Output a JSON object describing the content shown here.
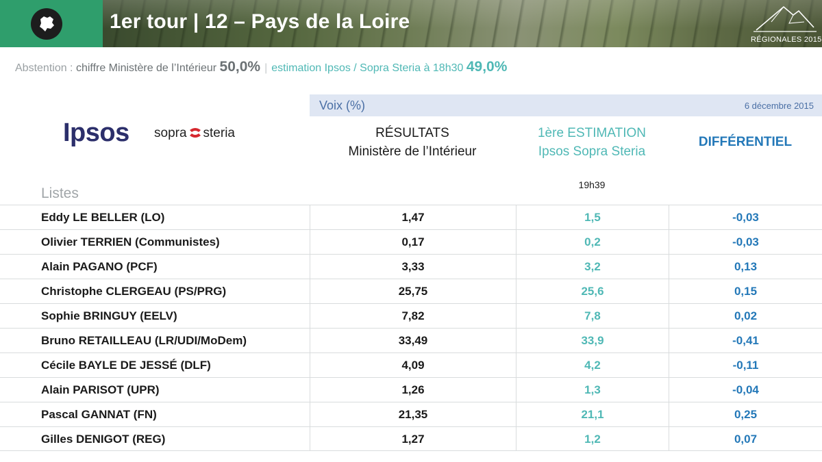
{
  "header": {
    "title": "1er tour | 12 – Pays de la Loire",
    "badge_icon": "region-map-icon",
    "brand_logo_text": "RÉGIONALES 2015",
    "banner_color": "#2f9e6c"
  },
  "abstention": {
    "label": "Abstention",
    "colon": " : ",
    "ministere_label": "chiffre Ministère de l’Intérieur",
    "ministere_value": "50,0%",
    "separator": "|",
    "estimation_label": "estimation Ipsos / Sopra Steria à 18h30",
    "estimation_value": "49,0%"
  },
  "logos": {
    "ipsos": "Ipsos",
    "sopra_left": "sopra",
    "sopra_right": "steria"
  },
  "voix_band": {
    "label": "Voix (%)",
    "date": "6 décembre 2015"
  },
  "columns": {
    "listes": "Listes",
    "resultats_line1": "RÉSULTATS",
    "resultats_line2": "Ministère de l’Intérieur",
    "estimation_line1": "1ère ESTIMATION",
    "estimation_line2": "Ipsos Sopra Steria",
    "estimation_time": "19h39",
    "differentiel": "DIFFÉRENTIEL"
  },
  "colors": {
    "estimation": "#4fb8b5",
    "differentiel": "#2378b8",
    "ipsos": "#2c2f6b",
    "band": "#dfe6f3"
  },
  "chart_data": {
    "type": "table",
    "columns": [
      "Listes",
      "RÉSULTATS Ministère de l’Intérieur",
      "1ère ESTIMATION Ipsos Sopra Steria",
      "DIFFÉRENTIEL"
    ],
    "rows": [
      {
        "name": "Eddy LE BELLER (LO)",
        "resultat": "1,47",
        "estimation": "1,5",
        "differentiel": "-0,03"
      },
      {
        "name": "Olivier TERRIEN (Communistes)",
        "resultat": "0,17",
        "estimation": "0,2",
        "differentiel": "-0,03"
      },
      {
        "name": "Alain PAGANO (PCF)",
        "resultat": "3,33",
        "estimation": "3,2",
        "differentiel": "0,13"
      },
      {
        "name": "Christophe CLERGEAU (PS/PRG)",
        "resultat": "25,75",
        "estimation": "25,6",
        "differentiel": "0,15"
      },
      {
        "name": "Sophie BRINGUY (EELV)",
        "resultat": "7,82",
        "estimation": "7,8",
        "differentiel": "0,02"
      },
      {
        "name": "Bruno RETAILLEAU (LR/UDI/MoDem)",
        "resultat": "33,49",
        "estimation": "33,9",
        "differentiel": "-0,41"
      },
      {
        "name": "Cécile BAYLE DE JESSÉ (DLF)",
        "resultat": "4,09",
        "estimation": "4,2",
        "differentiel": "-0,11"
      },
      {
        "name": "Alain PARISOT (UPR)",
        "resultat": "1,26",
        "estimation": "1,3",
        "differentiel": "-0,04"
      },
      {
        "name": "Pascal GANNAT (FN)",
        "resultat": "21,35",
        "estimation": "21,1",
        "differentiel": "0,25"
      },
      {
        "name": "Gilles DENIGOT (REG)",
        "resultat": "1,27",
        "estimation": "1,2",
        "differentiel": "0,07"
      }
    ]
  }
}
